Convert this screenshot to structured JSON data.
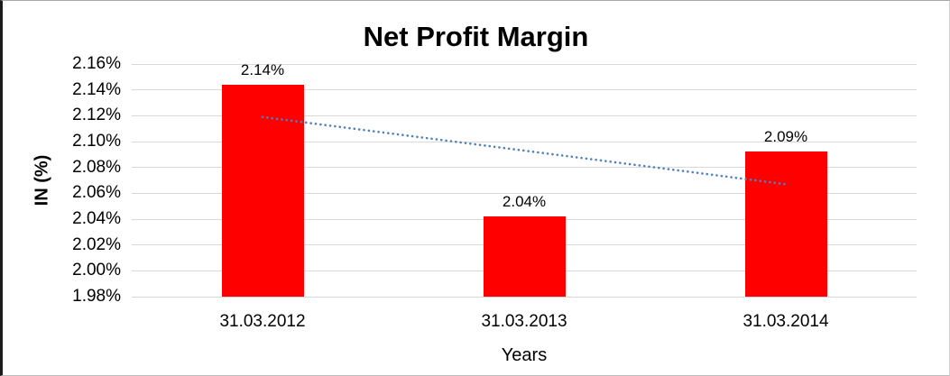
{
  "colors": {
    "bar_fill": "#fe0000",
    "trendline": "#4f81bd",
    "gridline": "#d9d9d9",
    "text": "#000000",
    "background": "#ffffff"
  },
  "chart_data": {
    "type": "bar",
    "title": "Net Profit Margin",
    "xlabel": "Years",
    "ylabel": "IN (%)",
    "categories": [
      "31.03.2012",
      "31.03.2013",
      "31.03.2014"
    ],
    "values": [
      2.144,
      2.042,
      2.092
    ],
    "data_labels": [
      "2.14%",
      "2.04%",
      "2.09%"
    ],
    "ylim": [
      1.98,
      2.16
    ],
    "ytick_step": 0.02,
    "ytick_labels": [
      "2.16%",
      "2.14%",
      "2.12%",
      "2.10%",
      "2.08%",
      "2.06%",
      "2.04%",
      "2.02%",
      "2.00%",
      "1.98%"
    ],
    "grid": true,
    "legend": "none",
    "trendline": {
      "style": "dotted",
      "start_value": 2.119,
      "end_value": 2.067
    }
  }
}
